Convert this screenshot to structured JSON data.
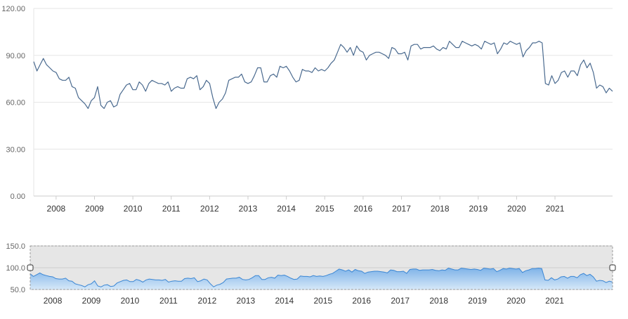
{
  "chart_data": [
    {
      "type": "line",
      "role": "main",
      "title": "",
      "xlabel": "",
      "ylabel": "",
      "ylim": [
        0,
        120
      ],
      "yticks": [
        "0.00",
        "30.00",
        "60.00",
        "90.00",
        "120.00"
      ],
      "ytick_values": [
        0,
        30,
        60,
        90,
        120
      ],
      "xticks": [
        "2008",
        "2009",
        "2010",
        "2011",
        "2012",
        "2013",
        "2014",
        "2015",
        "2016",
        "2017",
        "2018",
        "2019",
        "2020",
        "2021"
      ],
      "xlim": [
        "2007-06",
        "2021-12"
      ],
      "grid": true,
      "series": [
        {
          "color": "#4a6a8f",
          "points": [
            [
              "2007-06",
              86
            ],
            [
              "2007-07",
              80
            ],
            [
              "2007-08",
              84
            ],
            [
              "2007-09",
              88
            ],
            [
              "2007-10",
              84
            ],
            [
              "2007-11",
              82
            ],
            [
              "2007-12",
              80
            ],
            [
              "2008-01",
              79
            ],
            [
              "2008-02",
              75
            ],
            [
              "2008-03",
              74
            ],
            [
              "2008-04",
              74
            ],
            [
              "2008-05",
              76
            ],
            [
              "2008-06",
              70
            ],
            [
              "2008-07",
              69
            ],
            [
              "2008-08",
              63
            ],
            [
              "2008-09",
              61
            ],
            [
              "2008-10",
              59
            ],
            [
              "2008-11",
              56
            ],
            [
              "2008-12",
              61
            ],
            [
              "2009-01",
              63
            ],
            [
              "2009-02",
              70
            ],
            [
              "2009-03",
              58
            ],
            [
              "2009-04",
              56
            ],
            [
              "2009-05",
              60
            ],
            [
              "2009-06",
              61
            ],
            [
              "2009-07",
              57
            ],
            [
              "2009-08",
              58
            ],
            [
              "2009-09",
              65
            ],
            [
              "2009-10",
              68
            ],
            [
              "2009-11",
              71
            ],
            [
              "2009-12",
              72
            ],
            [
              "2010-01",
              68
            ],
            [
              "2010-02",
              68
            ],
            [
              "2010-03",
              73
            ],
            [
              "2010-04",
              71
            ],
            [
              "2010-05",
              67
            ],
            [
              "2010-06",
              72
            ],
            [
              "2010-07",
              74
            ],
            [
              "2010-08",
              73
            ],
            [
              "2010-09",
              72
            ],
            [
              "2010-10",
              72
            ],
            [
              "2010-11",
              71
            ],
            [
              "2010-12",
              73
            ],
            [
              "2011-01",
              67
            ],
            [
              "2011-02",
              69
            ],
            [
              "2011-03",
              70
            ],
            [
              "2011-04",
              69
            ],
            [
              "2011-05",
              69
            ],
            [
              "2011-06",
              75
            ],
            [
              "2011-07",
              76
            ],
            [
              "2011-08",
              75
            ],
            [
              "2011-09",
              77
            ],
            [
              "2011-10",
              68
            ],
            [
              "2011-11",
              70
            ],
            [
              "2011-12",
              74
            ],
            [
              "2012-01",
              72
            ],
            [
              "2012-02",
              63
            ],
            [
              "2012-03",
              56
            ],
            [
              "2012-04",
              60
            ],
            [
              "2012-05",
              62
            ],
            [
              "2012-06",
              66
            ],
            [
              "2012-07",
              74
            ],
            [
              "2012-08",
              75
            ],
            [
              "2012-09",
              76
            ],
            [
              "2012-10",
              76
            ],
            [
              "2012-11",
              78
            ],
            [
              "2012-12",
              73
            ],
            [
              "2013-01",
              72
            ],
            [
              "2013-02",
              73
            ],
            [
              "2013-03",
              77
            ],
            [
              "2013-04",
              82
            ],
            [
              "2013-05",
              82
            ],
            [
              "2013-06",
              73
            ],
            [
              "2013-07",
              73
            ],
            [
              "2013-08",
              77
            ],
            [
              "2013-09",
              78
            ],
            [
              "2013-10",
              76
            ],
            [
              "2013-11",
              83
            ],
            [
              "2013-12",
              82
            ],
            [
              "2014-01",
              83
            ],
            [
              "2014-02",
              80
            ],
            [
              "2014-03",
              76
            ],
            [
              "2014-04",
              73
            ],
            [
              "2014-05",
              74
            ],
            [
              "2014-06",
              81
            ],
            [
              "2014-07",
              80
            ],
            [
              "2014-08",
              80
            ],
            [
              "2014-09",
              79
            ],
            [
              "2014-10",
              82
            ],
            [
              "2014-11",
              80
            ],
            [
              "2014-12",
              81
            ],
            [
              "2015-01",
              80
            ],
            [
              "2015-02",
              82
            ],
            [
              "2015-03",
              85
            ],
            [
              "2015-04",
              87
            ],
            [
              "2015-05",
              92
            ],
            [
              "2015-06",
              97
            ],
            [
              "2015-07",
              95
            ],
            [
              "2015-08",
              92
            ],
            [
              "2015-09",
              95
            ],
            [
              "2015-10",
              90
            ],
            [
              "2015-11",
              96
            ],
            [
              "2015-12",
              93
            ],
            [
              "2016-01",
              92
            ],
            [
              "2016-02",
              87
            ],
            [
              "2016-03",
              90
            ],
            [
              "2016-04",
              91
            ],
            [
              "2016-05",
              92
            ],
            [
              "2016-06",
              92
            ],
            [
              "2016-07",
              91
            ],
            [
              "2016-08",
              90
            ],
            [
              "2016-09",
              88
            ],
            [
              "2016-10",
              95
            ],
            [
              "2016-11",
              94
            ],
            [
              "2016-12",
              91
            ],
            [
              "2017-01",
              91
            ],
            [
              "2017-02",
              92
            ],
            [
              "2017-03",
              87
            ],
            [
              "2017-04",
              96
            ],
            [
              "2017-05",
              97
            ],
            [
              "2017-06",
              97
            ],
            [
              "2017-07",
              94
            ],
            [
              "2017-08",
              95
            ],
            [
              "2017-09",
              95
            ],
            [
              "2017-10",
              95
            ],
            [
              "2017-11",
              96
            ],
            [
              "2017-12",
              94
            ],
            [
              "2018-01",
              93
            ],
            [
              "2018-02",
              95
            ],
            [
              "2018-03",
              94
            ],
            [
              "2018-04",
              99
            ],
            [
              "2018-05",
              97
            ],
            [
              "2018-06",
              95
            ],
            [
              "2018-07",
              95
            ],
            [
              "2018-08",
              99
            ],
            [
              "2018-09",
              98
            ],
            [
              "2018-10",
              97
            ],
            [
              "2018-11",
              96
            ],
            [
              "2018-12",
              97
            ],
            [
              "2019-01",
              96
            ],
            [
              "2019-02",
              94
            ],
            [
              "2019-03",
              99
            ],
            [
              "2019-04",
              98
            ],
            [
              "2019-05",
              97
            ],
            [
              "2019-06",
              98
            ],
            [
              "2019-07",
              91
            ],
            [
              "2019-08",
              94
            ],
            [
              "2019-09",
              98
            ],
            [
              "2019-10",
              97
            ],
            [
              "2019-11",
              99
            ],
            [
              "2019-12",
              98
            ],
            [
              "2020-01",
              97
            ],
            [
              "2020-02",
              98
            ],
            [
              "2020-03",
              89
            ],
            [
              "2020-04",
              93
            ],
            [
              "2020-05",
              95
            ],
            [
              "2020-06",
              98
            ],
            [
              "2020-07",
              98
            ],
            [
              "2020-08",
              99
            ],
            [
              "2020-09",
              98
            ],
            [
              "2020-10",
              72
            ],
            [
              "2020-11",
              71
            ],
            [
              "2020-12",
              77
            ],
            [
              "2021-01",
              72
            ],
            [
              "2021-02",
              74
            ],
            [
              "2021-03",
              79
            ],
            [
              "2021-04",
              80
            ],
            [
              "2021-05",
              76
            ],
            [
              "2021-06",
              80
            ],
            [
              "2021-07",
              80
            ],
            [
              "2021-08",
              77
            ],
            [
              "2021-09",
              84
            ],
            [
              "2021-10",
              87
            ],
            [
              "2021-11",
              82
            ],
            [
              "2021-12",
              85
            ],
            [
              "2022-01",
              79
            ],
            [
              "2022-02",
              69
            ],
            [
              "2022-03",
              71
            ],
            [
              "2022-04",
              70
            ],
            [
              "2022-05",
              66
            ],
            [
              "2022-06",
              69
            ],
            [
              "2022-07",
              67
            ]
          ]
        }
      ]
    },
    {
      "type": "area",
      "role": "navigator",
      "ylim": [
        50,
        150
      ],
      "yticks": [
        "50.0",
        "100.0",
        "150.0"
      ],
      "ytick_values": [
        50,
        100,
        150
      ],
      "xticks": [
        "2008",
        "2009",
        "2010",
        "2011",
        "2012",
        "2013",
        "2014",
        "2015",
        "2016",
        "2017",
        "2018",
        "2019",
        "2020",
        "2021"
      ],
      "series_ref": "same as main series",
      "colors": {
        "fill_top": "#7fb3e8",
        "fill_bottom": "#d6e8f8",
        "line": "#3a86d4",
        "selection": "#e6e6e6"
      }
    }
  ]
}
